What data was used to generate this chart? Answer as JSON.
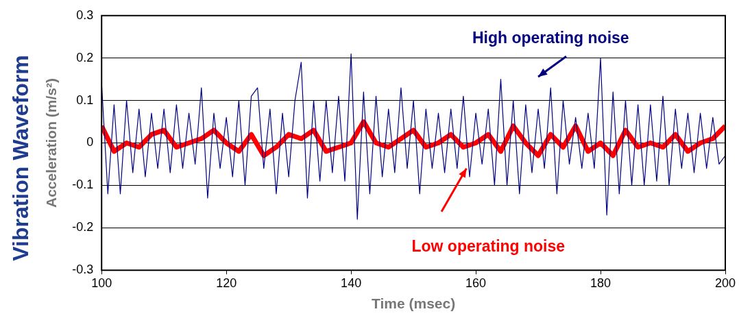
{
  "chart_data": {
    "type": "line",
    "title": "Vibration Waveform",
    "xlabel": "Time (msec)",
    "ylabel": "Acceleration (m/s²)",
    "xlim": [
      100,
      200
    ],
    "xticks": [
      100,
      120,
      140,
      160,
      180,
      200
    ],
    "ylim": [
      -0.3,
      0.3
    ],
    "yticks": [
      -0.3,
      -0.2,
      -0.1,
      0,
      0.1,
      0.2,
      0.3
    ],
    "grid": "y",
    "legend": false,
    "marker": "none",
    "line_style": "solid",
    "series": [
      {
        "name": "High operating noise",
        "color": "#000080",
        "x": [
          100,
          101,
          102,
          103,
          104,
          105,
          106,
          107,
          108,
          109,
          110,
          111,
          112,
          113,
          114,
          115,
          116,
          117,
          118,
          119,
          120,
          121,
          122,
          123,
          124,
          125,
          126,
          127,
          128,
          129,
          130,
          131,
          132,
          133,
          134,
          135,
          136,
          137,
          138,
          139,
          140,
          141,
          142,
          143,
          144,
          145,
          146,
          147,
          148,
          149,
          150,
          151,
          152,
          153,
          154,
          155,
          156,
          157,
          158,
          159,
          160,
          161,
          162,
          163,
          164,
          165,
          166,
          167,
          168,
          169,
          170,
          171,
          172,
          173,
          174,
          175,
          176,
          177,
          178,
          179,
          180,
          181,
          182,
          183,
          184,
          185,
          186,
          187,
          188,
          189,
          190,
          191,
          192,
          193,
          194,
          195,
          196,
          197,
          198,
          199,
          200
        ],
        "values": [
          0.14,
          -0.12,
          0.09,
          -0.12,
          0.1,
          -0.07,
          0.08,
          -0.08,
          0.07,
          -0.06,
          0.08,
          -0.07,
          0.09,
          -0.06,
          0.07,
          -0.05,
          0.13,
          -0.13,
          0.07,
          -0.06,
          0.06,
          -0.08,
          0.1,
          -0.1,
          0.11,
          0.13,
          -0.06,
          0.08,
          -0.12,
          0.07,
          -0.08,
          0.1,
          0.19,
          -0.13,
          0.1,
          -0.09,
          0.1,
          -0.07,
          0.11,
          -0.09,
          0.21,
          -0.18,
          0.12,
          -0.12,
          0.11,
          -0.08,
          0.08,
          -0.07,
          0.13,
          -0.06,
          0.1,
          -0.12,
          0.08,
          -0.06,
          0.07,
          -0.07,
          0.08,
          -0.06,
          0.11,
          -0.08,
          0.07,
          -0.05,
          0.08,
          -0.1,
          0.15,
          -0.1,
          0.1,
          -0.12,
          0.09,
          -0.07,
          0.08,
          -0.06,
          0.13,
          -0.12,
          0.1,
          -0.05,
          0.06,
          -0.06,
          0.07,
          -0.06,
          0.2,
          -0.17,
          0.12,
          -0.12,
          0.1,
          -0.1,
          0.09,
          -0.1,
          0.09,
          -0.09,
          0.11,
          -0.1,
          0.08,
          -0.06,
          0.07,
          -0.07,
          0.07,
          -0.06,
          0.06,
          -0.05,
          -0.03
        ]
      },
      {
        "name": "Low operating noise",
        "color": "#ff0000",
        "x": [
          100,
          102,
          104,
          106,
          108,
          110,
          112,
          114,
          116,
          118,
          120,
          122,
          124,
          126,
          128,
          130,
          132,
          134,
          136,
          138,
          140,
          142,
          144,
          146,
          148,
          150,
          152,
          154,
          156,
          158,
          160,
          162,
          164,
          166,
          168,
          170,
          172,
          174,
          176,
          178,
          180,
          182,
          184,
          186,
          188,
          190,
          192,
          194,
          196,
          198,
          200
        ],
        "values": [
          0.04,
          -0.02,
          0.0,
          -0.01,
          0.02,
          0.03,
          -0.01,
          0.0,
          0.01,
          0.03,
          0.0,
          -0.02,
          0.02,
          -0.03,
          -0.01,
          0.02,
          0.01,
          0.03,
          -0.02,
          -0.01,
          0.0,
          0.05,
          0.0,
          -0.01,
          0.01,
          0.03,
          -0.01,
          0.0,
          0.02,
          -0.01,
          0.0,
          0.02,
          -0.02,
          0.04,
          0.0,
          -0.03,
          0.02,
          -0.01,
          0.04,
          -0.02,
          0.0,
          -0.03,
          0.03,
          -0.01,
          0.0,
          -0.01,
          0.02,
          -0.02,
          0.0,
          0.01,
          0.04
        ]
      }
    ]
  }
}
